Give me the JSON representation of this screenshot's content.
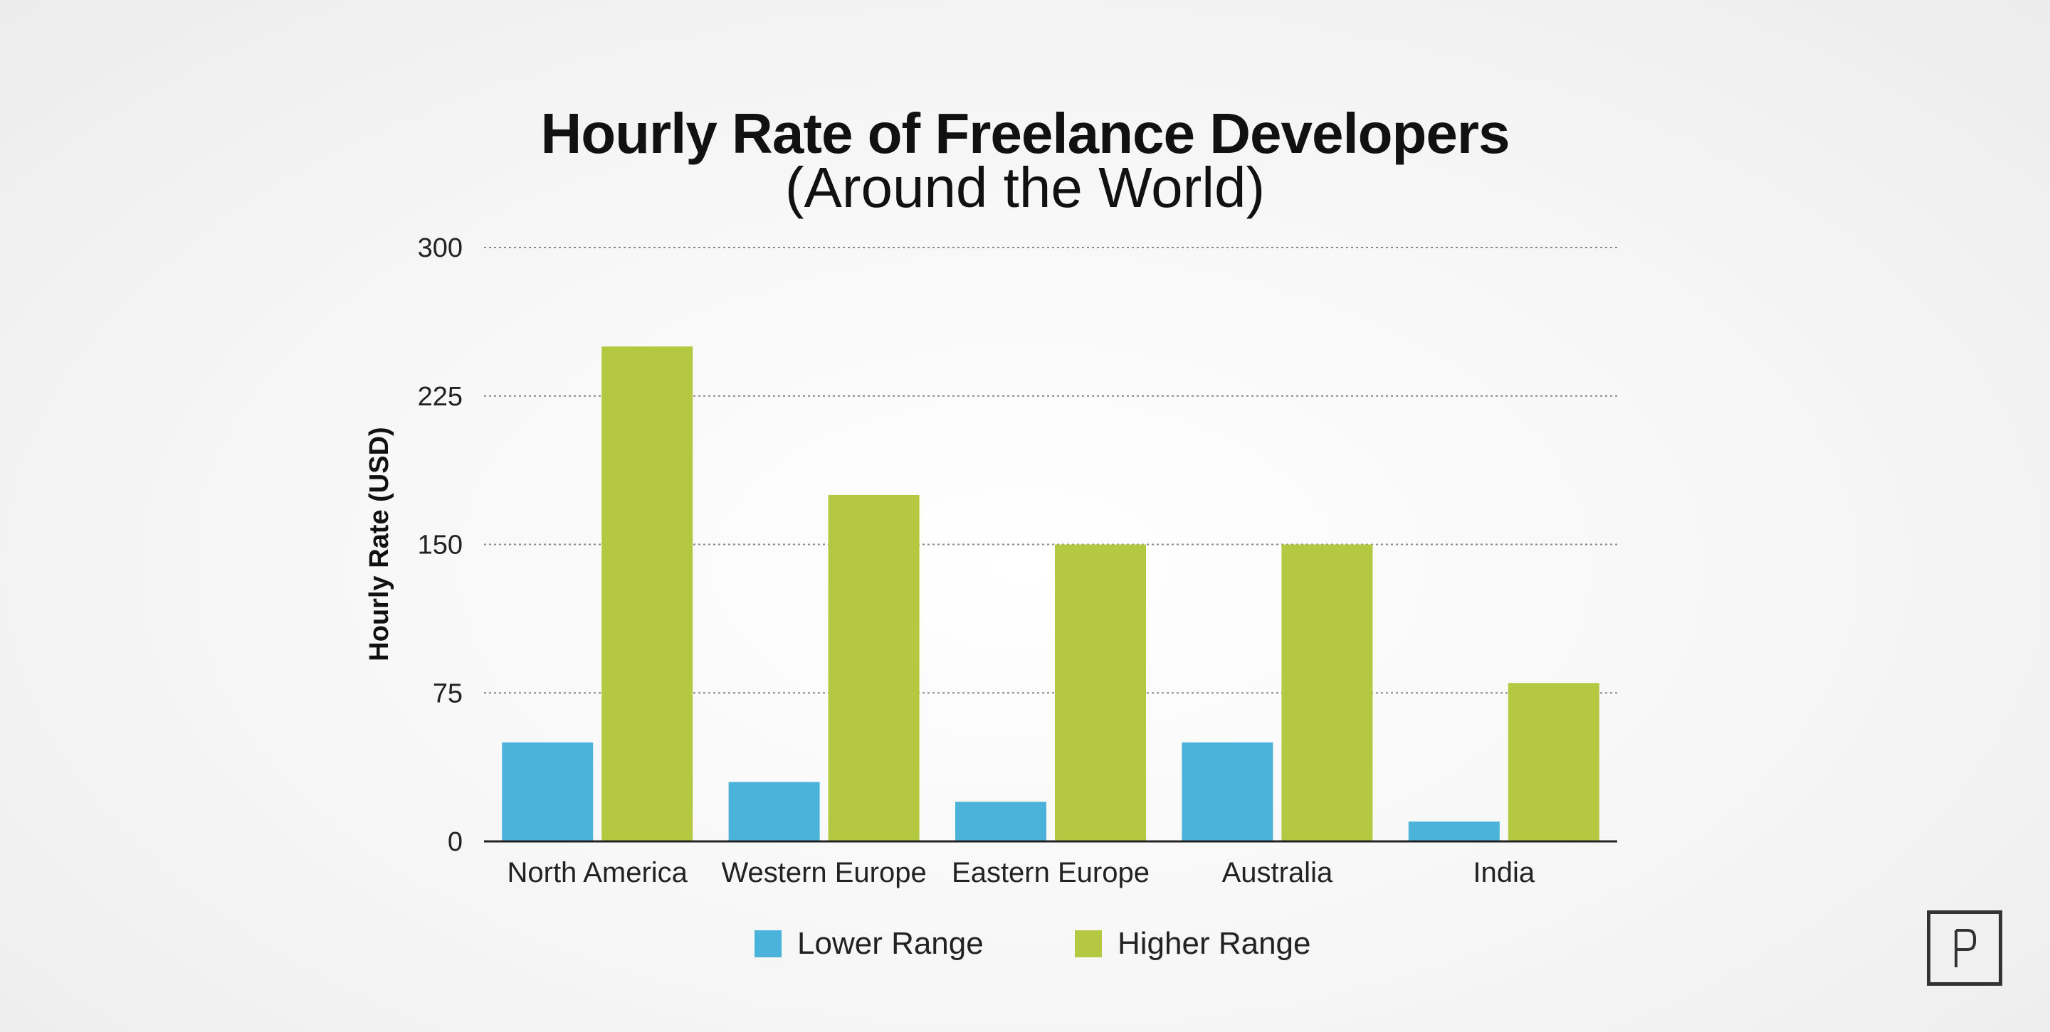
{
  "chart_data": {
    "type": "bar",
    "title": "Hourly Rate of Freelance Developers",
    "subtitle": "(Around the World)",
    "xlabel": "",
    "ylabel": "Hourly Rate (USD)",
    "ylim": [
      0,
      300
    ],
    "yticks": [
      0,
      75,
      150,
      225,
      300
    ],
    "grid": true,
    "legend_position": "bottom",
    "categories": [
      "North America",
      "Western Europe",
      "Eastern Europe",
      "Australia",
      "India"
    ],
    "series": [
      {
        "name": "Lower Range",
        "values": [
          50,
          30,
          20,
          50,
          10
        ],
        "color": "#4BB3DA"
      },
      {
        "name": "Higher Range",
        "values": [
          250,
          175,
          150,
          150,
          80
        ],
        "color": "#B5C842"
      }
    ]
  },
  "logo": {
    "icon": "p-logo-icon",
    "text": "P"
  }
}
